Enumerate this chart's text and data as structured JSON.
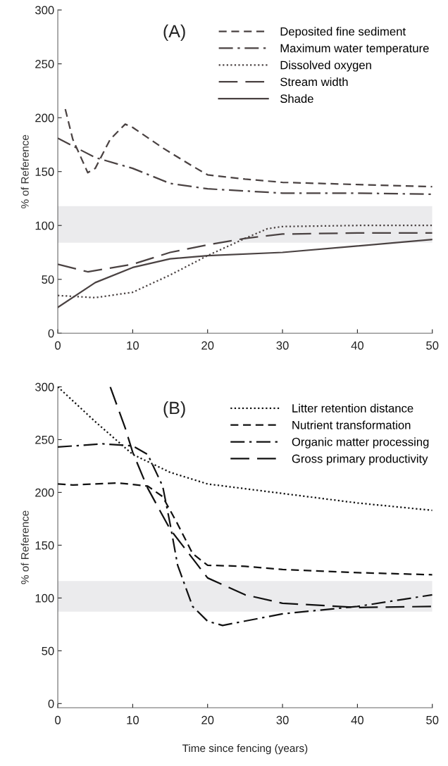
{
  "chart_data": [
    {
      "type": "line",
      "annotations": [
        "(A)"
      ],
      "ylabel": "% of Reference",
      "xlim": [
        0,
        50
      ],
      "xticks": [
        0,
        10,
        20,
        30,
        40,
        50
      ],
      "ylim": [
        0,
        300
      ],
      "yticks": [
        0,
        50,
        100,
        150,
        200,
        250,
        300
      ],
      "grid": false,
      "legend": "top right",
      "marker": "none",
      "bands": [
        {
          "axis": "y",
          "from": 84,
          "to": 118,
          "color": "#ebebed"
        }
      ],
      "series": [
        {
          "name": "Deposited fine sediment",
          "color": "#4a4242",
          "line_style": "dashed",
          "x": [
            1,
            2,
            4,
            5,
            7,
            9,
            10,
            14,
            18,
            20,
            25,
            30,
            40,
            50
          ],
          "values": [
            208,
            180,
            149,
            153,
            180,
            194,
            191,
            172,
            155,
            147,
            143,
            140,
            138,
            136
          ]
        },
        {
          "name": "Maximum water temperature",
          "color": "#4a4242",
          "line_style": "dashdot",
          "x": [
            0,
            5,
            10,
            15,
            20,
            30,
            40,
            50
          ],
          "values": [
            181,
            163,
            153,
            139,
            134,
            130,
            130,
            129
          ]
        },
        {
          "name": "Dissolved oxygen",
          "color": "#4a4242",
          "line_style": "dotted",
          "x": [
            0,
            5,
            10,
            15,
            20,
            25,
            28,
            30,
            40,
            50
          ],
          "values": [
            35,
            33,
            38,
            54,
            72,
            88,
            97,
            99,
            100,
            100
          ]
        },
        {
          "name": "Stream width",
          "color": "#4a4242",
          "line_style": "longdash",
          "x": [
            0,
            4,
            10,
            15,
            20,
            25,
            30,
            40,
            50
          ],
          "values": [
            64,
            57,
            64,
            75,
            82,
            88,
            92,
            93,
            93
          ]
        },
        {
          "name": "Shade",
          "color": "#4a4242",
          "line_style": "solid",
          "x": [
            0,
            5,
            10,
            15,
            20,
            30,
            40,
            50
          ],
          "values": [
            24,
            47,
            61,
            69,
            72,
            75,
            81,
            87
          ]
        }
      ]
    },
    {
      "type": "line",
      "annotations": [
        "(B)"
      ],
      "ylabel": "% of Reference",
      "xlabel": "Time since fencing (years)",
      "xlim": [
        0,
        50
      ],
      "xticks": [
        0,
        10,
        20,
        30,
        40,
        50
      ],
      "ylim": [
        -4,
        300
      ],
      "yticks": [
        0,
        50,
        100,
        150,
        200,
        250,
        300
      ],
      "grid": false,
      "legend": "top right",
      "marker": "none",
      "bands": [
        {
          "axis": "y",
          "from": 87,
          "to": 116,
          "color": "#ebebed"
        }
      ],
      "series": [
        {
          "name": "Litter retention distance",
          "color": "#111111",
          "line_style": "dotted",
          "x": [
            0,
            5,
            10,
            15,
            20,
            30,
            40,
            50
          ],
          "values": [
            300,
            267,
            236,
            219,
            208,
            199,
            190,
            183
          ]
        },
        {
          "name": "Nutrient transformation",
          "color": "#111111",
          "line_style": "dashed",
          "x": [
            0,
            2,
            8,
            12,
            14,
            16,
            18,
            20,
            25,
            30,
            40,
            50
          ],
          "values": [
            208,
            207,
            209,
            206,
            196,
            170,
            142,
            131,
            130,
            127,
            124,
            122
          ]
        },
        {
          "name": "Organic matter processing",
          "color": "#111111",
          "line_style": "dashdot",
          "x": [
            0,
            6,
            10,
            12,
            14,
            15,
            16,
            18,
            20,
            22,
            30,
            40,
            50
          ],
          "values": [
            243,
            246,
            244,
            236,
            206,
            170,
            131,
            92,
            78,
            74,
            85,
            92,
            103
          ]
        },
        {
          "name": "Gross primary productivity",
          "color": "#111111",
          "line_style": "longdash",
          "x": [
            7,
            9,
            10,
            12,
            15,
            20,
            25,
            30,
            40,
            50
          ],
          "values": [
            300,
            261,
            238,
            204,
            165,
            119,
            103,
            95,
            91,
            92
          ]
        }
      ]
    }
  ]
}
